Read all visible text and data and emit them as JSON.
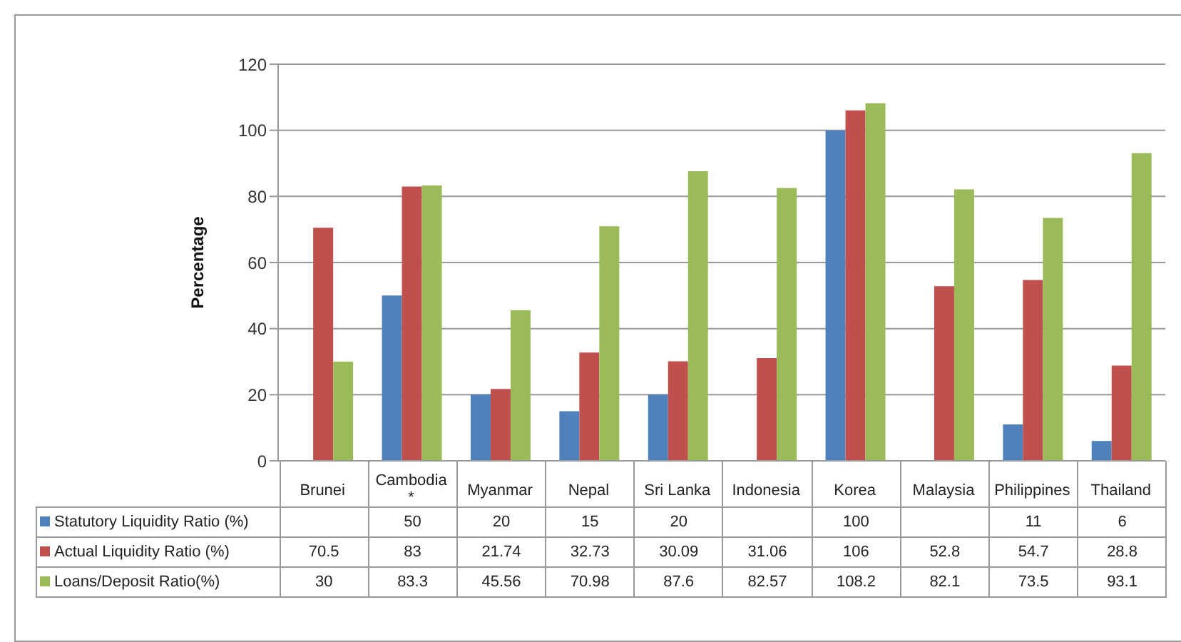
{
  "chart_data": {
    "type": "bar",
    "ylabel": "Percentage",
    "categories": [
      "Brunei",
      "Cambodia *",
      "Myanmar",
      "Nepal",
      "Sri Lanka",
      "Indonesia",
      "Korea",
      "Malaysia",
      "Philippines",
      "Thailand"
    ],
    "series": [
      {
        "name": "Statutory Liquidity Ratio (%)",
        "color": "#4f81bd",
        "values": [
          null,
          50,
          20,
          15,
          20,
          null,
          100,
          null,
          11,
          6
        ]
      },
      {
        "name": "Actual Liquidity Ratio (%)",
        "color": "#c0504d",
        "values": [
          70.5,
          83,
          21.74,
          32.73,
          30.09,
          31.06,
          106,
          52.8,
          54.7,
          28.8
        ]
      },
      {
        "name": "Loans/Deposit Ratio(%)",
        "color": "#9bbb59",
        "values": [
          30,
          83.3,
          45.56,
          70.98,
          87.6,
          82.57,
          108.2,
          82.1,
          73.5,
          93.1
        ]
      }
    ],
    "ylim": [
      0,
      120
    ],
    "yticks": [
      0,
      20,
      40,
      60,
      80,
      100,
      120
    ],
    "grid": "y",
    "legend": "bottom",
    "data_labels": true
  }
}
